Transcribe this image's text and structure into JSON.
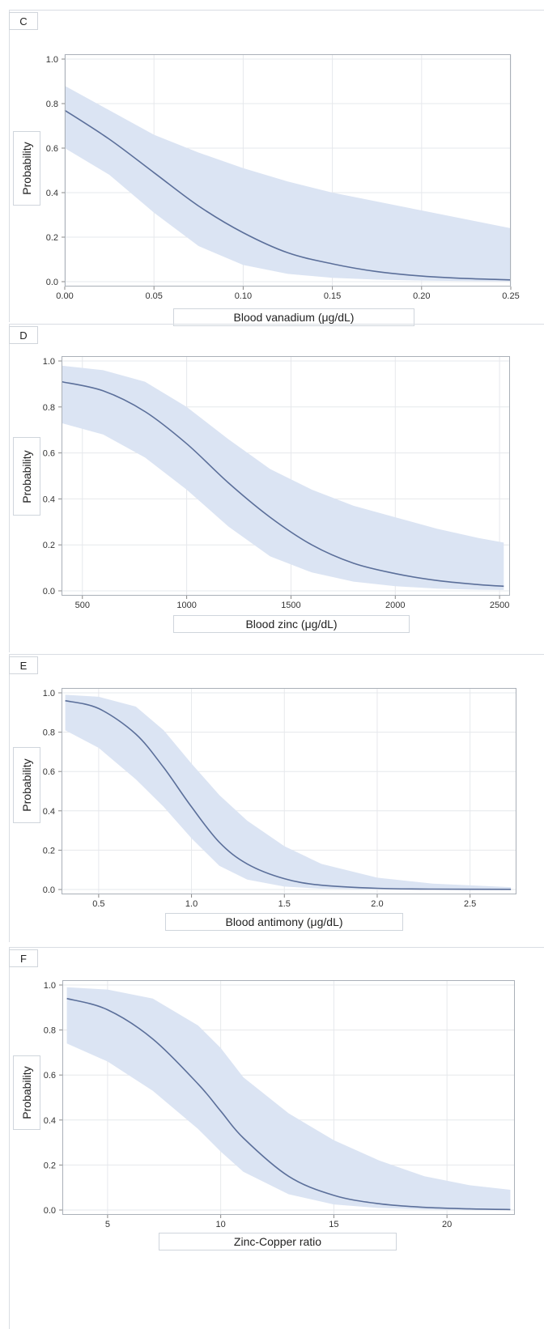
{
  "chart_data": [
    {
      "type": "line",
      "panel_label": "C",
      "xlabel": "Blood vanadium (μg/dL)",
      "ylabel": "Probability",
      "xlim": [
        0,
        0.25
      ],
      "ylim": [
        0,
        1.0
      ],
      "xticks": [
        0.0,
        0.05,
        0.1,
        0.15,
        0.2,
        0.25
      ],
      "xtick_labels": [
        "0.00",
        "0.05",
        "0.10",
        "0.15",
        "0.20",
        "0.25"
      ],
      "yticks": [
        0.0,
        0.2,
        0.4,
        0.6,
        0.8,
        1.0
      ],
      "ytick_labels": [
        "0.0",
        "0.2",
        "0.4",
        "0.6",
        "0.8",
        "1.0"
      ],
      "grid": true,
      "x": [
        0.0,
        0.025,
        0.05,
        0.075,
        0.1,
        0.125,
        0.15,
        0.175,
        0.2,
        0.225,
        0.25
      ],
      "series": [
        {
          "values": [
            0.77,
            0.64,
            0.49,
            0.34,
            0.22,
            0.13,
            0.08,
            0.045,
            0.025,
            0.014,
            0.008
          ]
        }
      ],
      "band": {
        "lower": [
          0.6,
          0.48,
          0.31,
          0.16,
          0.075,
          0.035,
          0.017,
          0.009,
          0.005,
          0.003,
          0.002
        ],
        "upper": [
          0.88,
          0.77,
          0.66,
          0.58,
          0.51,
          0.45,
          0.4,
          0.36,
          0.32,
          0.28,
          0.24
        ]
      },
      "line_color": "#5b6f9a",
      "band_color": "#dbe4f3"
    },
    {
      "type": "line",
      "panel_label": "D",
      "xlabel": "Blood zinc (μg/dL)",
      "ylabel": "Probability",
      "xlim": [
        400,
        2550
      ],
      "ylim": [
        0,
        1.0
      ],
      "xticks": [
        500,
        1000,
        1500,
        2000,
        2500
      ],
      "xtick_labels": [
        "500",
        "1000",
        "1500",
        "2000",
        "2500"
      ],
      "yticks": [
        0.0,
        0.2,
        0.4,
        0.6,
        0.8,
        1.0
      ],
      "ytick_labels": [
        "0.0",
        "0.2",
        "0.4",
        "0.6",
        "0.8",
        "1.0"
      ],
      "grid": true,
      "x": [
        400,
        600,
        800,
        1000,
        1200,
        1400,
        1600,
        1800,
        2000,
        2200,
        2400,
        2520
      ],
      "series": [
        {
          "values": [
            0.91,
            0.87,
            0.78,
            0.64,
            0.47,
            0.32,
            0.2,
            0.12,
            0.075,
            0.045,
            0.027,
            0.02
          ]
        }
      ],
      "band": {
        "lower": [
          0.73,
          0.68,
          0.58,
          0.44,
          0.28,
          0.15,
          0.08,
          0.04,
          0.02,
          0.01,
          0.005,
          0.004
        ],
        "upper": [
          0.98,
          0.96,
          0.91,
          0.8,
          0.66,
          0.53,
          0.44,
          0.37,
          0.32,
          0.27,
          0.23,
          0.21
        ]
      },
      "line_color": "#5b6f9a",
      "band_color": "#dbe4f3"
    },
    {
      "type": "line",
      "panel_label": "E",
      "xlabel": "Blood antimony (μg/dL)",
      "ylabel": "Probability",
      "xlim": [
        0.3,
        2.75
      ],
      "ylim": [
        0,
        1.0
      ],
      "xticks": [
        0.5,
        1.0,
        1.5,
        2.0,
        2.5
      ],
      "xtick_labels": [
        "0.5",
        "1.0",
        "1.5",
        "2.0",
        "2.5"
      ],
      "yticks": [
        0.0,
        0.2,
        0.4,
        0.6,
        0.8,
        1.0
      ],
      "ytick_labels": [
        "0.0",
        "0.2",
        "0.4",
        "0.6",
        "0.8",
        "1.0"
      ],
      "grid": true,
      "x": [
        0.32,
        0.5,
        0.7,
        0.85,
        1.0,
        1.15,
        1.3,
        1.5,
        1.7,
        2.0,
        2.3,
        2.72
      ],
      "series": [
        {
          "values": [
            0.96,
            0.92,
            0.79,
            0.62,
            0.42,
            0.24,
            0.13,
            0.055,
            0.022,
            0.006,
            0.002,
            0.001
          ]
        }
      ],
      "band": {
        "lower": [
          0.81,
          0.72,
          0.56,
          0.42,
          0.26,
          0.12,
          0.05,
          0.015,
          0.004,
          0.001,
          0.0,
          0.0
        ],
        "upper": [
          0.99,
          0.98,
          0.93,
          0.81,
          0.64,
          0.48,
          0.35,
          0.22,
          0.13,
          0.06,
          0.03,
          0.012
        ]
      },
      "line_color": "#5b6f9a",
      "band_color": "#dbe4f3"
    },
    {
      "type": "line",
      "panel_label": "F",
      "xlabel": "Zinc-Copper ratio",
      "ylabel": "Probability",
      "xlim": [
        3,
        23
      ],
      "ylim": [
        0,
        1.0
      ],
      "xticks": [
        5,
        10,
        15,
        20
      ],
      "xtick_labels": [
        "5",
        "10",
        "15",
        "20"
      ],
      "yticks": [
        0.0,
        0.2,
        0.4,
        0.6,
        0.8,
        1.0
      ],
      "ytick_labels": [
        "0.0",
        "0.2",
        "0.4",
        "0.6",
        "0.8",
        "1.0"
      ],
      "grid": true,
      "x": [
        3.2,
        5,
        7,
        9,
        10,
        11,
        13,
        15,
        17,
        19,
        21,
        22.8
      ],
      "series": [
        {
          "values": [
            0.94,
            0.89,
            0.76,
            0.56,
            0.44,
            0.32,
            0.15,
            0.065,
            0.028,
            0.012,
            0.005,
            0.002
          ]
        }
      ],
      "band": {
        "lower": [
          0.74,
          0.66,
          0.53,
          0.36,
          0.26,
          0.17,
          0.07,
          0.025,
          0.009,
          0.003,
          0.001,
          0.0
        ],
        "upper": [
          0.99,
          0.98,
          0.94,
          0.82,
          0.72,
          0.59,
          0.43,
          0.31,
          0.22,
          0.15,
          0.11,
          0.09
        ]
      },
      "line_color": "#5b6f9a",
      "band_color": "#dbe4f3"
    }
  ]
}
